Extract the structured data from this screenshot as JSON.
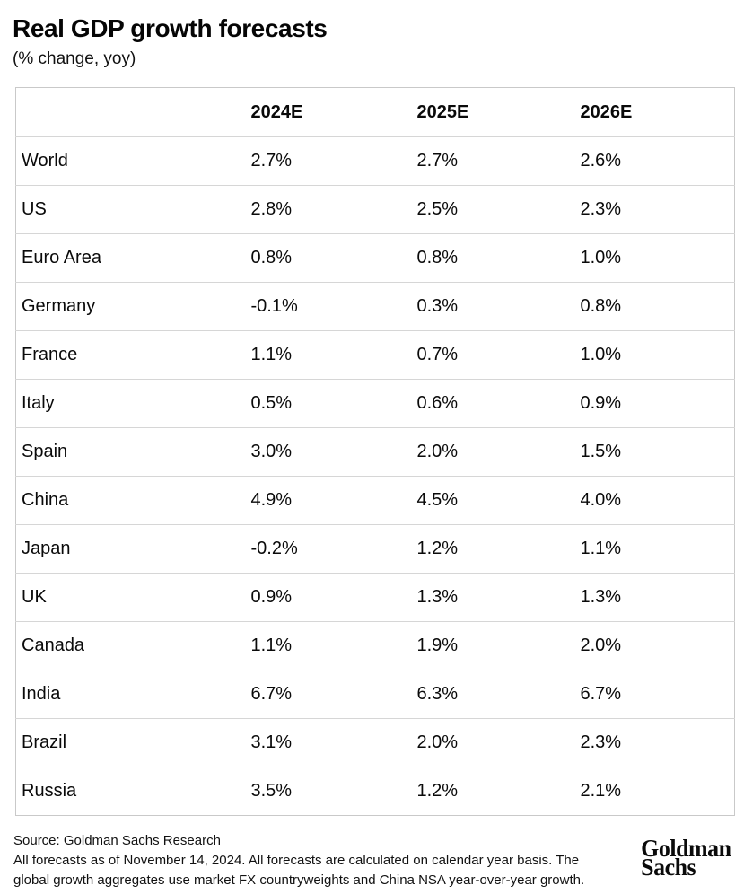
{
  "title": "Real GDP growth forecasts",
  "subtitle": "(% change, yoy)",
  "table": {
    "columns": [
      "",
      "2024E",
      "2025E",
      "2026E"
    ],
    "rows": [
      {
        "label": "World",
        "values": [
          "2.7%",
          "2.7%",
          "2.6%"
        ]
      },
      {
        "label": "US",
        "values": [
          "2.8%",
          "2.5%",
          "2.3%"
        ]
      },
      {
        "label": "Euro Area",
        "values": [
          "0.8%",
          "0.8%",
          "1.0%"
        ]
      },
      {
        "label": "Germany",
        "values": [
          "-0.1%",
          "0.3%",
          "0.8%"
        ]
      },
      {
        "label": "France",
        "values": [
          "1.1%",
          "0.7%",
          "1.0%"
        ]
      },
      {
        "label": "Italy",
        "values": [
          "0.5%",
          "0.6%",
          "0.9%"
        ]
      },
      {
        "label": "Spain",
        "values": [
          "3.0%",
          "2.0%",
          "1.5%"
        ]
      },
      {
        "label": "China",
        "values": [
          "4.9%",
          "4.5%",
          "4.0%"
        ]
      },
      {
        "label": "Japan",
        "values": [
          "-0.2%",
          "1.2%",
          "1.1%"
        ]
      },
      {
        "label": "UK",
        "values": [
          "0.9%",
          "1.3%",
          "1.3%"
        ]
      },
      {
        "label": "Canada",
        "values": [
          "1.1%",
          "1.9%",
          "2.0%"
        ]
      },
      {
        "label": "India",
        "values": [
          "6.7%",
          "6.3%",
          "6.7%"
        ]
      },
      {
        "label": "Brazil",
        "values": [
          "3.1%",
          "2.0%",
          "2.3%"
        ]
      },
      {
        "label": "Russia",
        "values": [
          "3.5%",
          "1.2%",
          "2.1%"
        ]
      }
    ]
  },
  "chart_data": {
    "type": "table",
    "title": "Real GDP growth forecasts",
    "subtitle": "(% change, yoy)",
    "unit": "percent change yoy",
    "columns": [
      "2024E",
      "2025E",
      "2026E"
    ],
    "categories": [
      "World",
      "US",
      "Euro Area",
      "Germany",
      "France",
      "Italy",
      "Spain",
      "China",
      "Japan",
      "UK",
      "Canada",
      "India",
      "Brazil",
      "Russia"
    ],
    "series": [
      {
        "name": "2024E",
        "values": [
          2.7,
          2.8,
          0.8,
          -0.1,
          1.1,
          0.5,
          3.0,
          4.9,
          -0.2,
          0.9,
          1.1,
          6.7,
          3.1,
          3.5
        ]
      },
      {
        "name": "2025E",
        "values": [
          2.7,
          2.5,
          0.8,
          0.3,
          0.7,
          0.6,
          2.0,
          4.5,
          1.2,
          1.3,
          1.9,
          6.3,
          2.0,
          1.2
        ]
      },
      {
        "name": "2026E",
        "values": [
          2.6,
          2.3,
          1.0,
          0.8,
          1.0,
          0.9,
          1.5,
          4.0,
          1.1,
          1.3,
          2.0,
          6.7,
          2.3,
          2.1
        ]
      }
    ]
  },
  "footer": {
    "source": "Source: Goldman Sachs Research",
    "note": "All forecasts as of November 14, 2024. All forecasts are calculated on calendar year basis. The global growth aggregates use market FX countryweights and China NSA year-over-year growth.",
    "logo_line1": "Goldman",
    "logo_line2": "Sachs"
  },
  "colors": {
    "text": "#0d0d0d",
    "border": "#c9c9c9",
    "row_divider": "#d6d6d6",
    "background": "#ffffff"
  }
}
